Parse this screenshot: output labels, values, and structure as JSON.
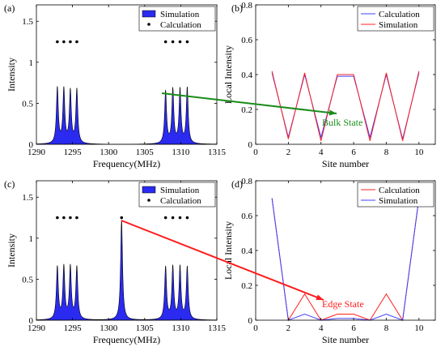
{
  "chart_data": [
    {
      "panel": "(a)",
      "type": "area",
      "xlabel": "Frequency(MHz)",
      "ylabel": "Intensity",
      "xlim": [
        1290,
        1315
      ],
      "ylim": [
        0,
        1.7
      ],
      "xticks": [
        1290,
        1295,
        1300,
        1305,
        1310,
        1315
      ],
      "yticks": [
        0,
        0.5,
        1,
        1.5
      ],
      "ytick_labels": [
        "0",
        "0.5",
        "1",
        "1.5"
      ],
      "legend": [
        "Simulation",
        "Calculation"
      ],
      "legend_position": "top-right",
      "series": [
        {
          "name": "Simulation",
          "kind": "peaks",
          "peaks": [
            {
              "x": 1292.9,
              "y": 0.68
            },
            {
              "x": 1293.8,
              "y": 0.66
            },
            {
              "x": 1294.7,
              "y": 0.64
            },
            {
              "x": 1295.6,
              "y": 0.66
            },
            {
              "x": 1307.9,
              "y": 0.64
            },
            {
              "x": 1308.9,
              "y": 0.66
            },
            {
              "x": 1309.9,
              "y": 0.66
            },
            {
              "x": 1310.9,
              "y": 0.68
            }
          ],
          "baseline_center": 1301.5
        },
        {
          "name": "Calculation",
          "kind": "dots",
          "x": [
            1292.9,
            1293.8,
            1294.7,
            1295.6,
            1307.9,
            1308.9,
            1309.9,
            1310.9
          ],
          "y": [
            1.25,
            1.25,
            1.25,
            1.25,
            1.25,
            1.25,
            1.25,
            1.25
          ]
        }
      ]
    },
    {
      "panel": "(b)",
      "type": "line",
      "xlabel": "Site number",
      "ylabel": "Local Intensity",
      "xlim": [
        0,
        11
      ],
      "ylim": [
        0,
        0.8
      ],
      "xticks": [
        0,
        2,
        4,
        6,
        8,
        10
      ],
      "yticks": [
        0,
        0.2,
        0.4,
        0.6,
        0.8
      ],
      "ytick_labels": [
        "0",
        "0.2",
        "0.4",
        "0.6",
        "0.8"
      ],
      "legend": [
        "Calculation",
        "Simulation"
      ],
      "legend_position": "top-right",
      "x": [
        1,
        2,
        3,
        4,
        5,
        6,
        7,
        8,
        9,
        10
      ],
      "series": [
        {
          "name": "Calculation",
          "color": "#4040ff",
          "values": [
            0.41,
            0.04,
            0.4,
            0.04,
            0.39,
            0.39,
            0.04,
            0.4,
            0.03,
            0.41
          ]
        },
        {
          "name": "Simulation",
          "color": "#ff2020",
          "values": [
            0.42,
            0.03,
            0.41,
            0.02,
            0.4,
            0.4,
            0.02,
            0.41,
            0.02,
            0.42
          ]
        }
      ]
    },
    {
      "panel": "(c)",
      "type": "area",
      "xlabel": "Frequency(MHz)",
      "ylabel": "Intensity",
      "xlim": [
        1290,
        1315
      ],
      "ylim": [
        0,
        1.7
      ],
      "xticks": [
        1290,
        1295,
        1300,
        1305,
        1310,
        1315
      ],
      "yticks": [
        0,
        0.5,
        1,
        1.5
      ],
      "ytick_labels": [
        "0",
        "0.5",
        "1",
        "1.5"
      ],
      "legend": [
        "Simulation",
        "Calculation"
      ],
      "legend_position": "top-right",
      "series": [
        {
          "name": "Simulation",
          "kind": "peaks",
          "peaks": [
            {
              "x": 1292.9,
              "y": 0.64
            },
            {
              "x": 1293.8,
              "y": 0.64
            },
            {
              "x": 1294.7,
              "y": 0.64
            },
            {
              "x": 1295.6,
              "y": 0.64
            },
            {
              "x": 1301.8,
              "y": 1.22
            },
            {
              "x": 1307.9,
              "y": 0.64
            },
            {
              "x": 1308.9,
              "y": 0.64
            },
            {
              "x": 1309.9,
              "y": 0.64
            },
            {
              "x": 1310.9,
              "y": 0.64
            }
          ],
          "baseline_center": null
        },
        {
          "name": "Calculation",
          "kind": "dots",
          "x": [
            1292.9,
            1293.8,
            1294.7,
            1295.6,
            1301.8,
            1307.9,
            1308.9,
            1309.9,
            1310.9
          ],
          "y": [
            1.25,
            1.25,
            1.25,
            1.25,
            1.25,
            1.25,
            1.25,
            1.25,
            1.25
          ]
        }
      ]
    },
    {
      "panel": "(d)",
      "type": "line",
      "xlabel": "Site number",
      "ylabel": "Local Intensity",
      "xlim": [
        0,
        11
      ],
      "ylim": [
        0,
        0.8
      ],
      "xticks": [
        0,
        2,
        4,
        6,
        8,
        10
      ],
      "yticks": [
        0,
        0.2,
        0.4,
        0.6,
        0.8
      ],
      "ytick_labels": [
        "0",
        "0.2",
        "0.4",
        "0.6",
        "0.8"
      ],
      "legend": [
        "Calculation",
        "Simulation"
      ],
      "legend_position": "top-right",
      "x": [
        1,
        2,
        3,
        4,
        5,
        6,
        7,
        8,
        9,
        10
      ],
      "series": [
        {
          "name": "Calculation",
          "color": "#ff2020",
          "values": [
            0.7,
            0.0,
            0.15,
            0.0,
            0.035,
            0.035,
            0.0,
            0.15,
            0.0,
            0.7
          ]
        },
        {
          "name": "Simulation",
          "color": "#4040ff",
          "values": [
            0.7,
            0.0,
            0.035,
            0.0,
            0.01,
            0.01,
            0.0,
            0.035,
            0.0,
            0.7
          ]
        }
      ]
    }
  ],
  "annotations": {
    "bulk": {
      "text": "Bulk State",
      "color": "#1a8c1a"
    },
    "edge": {
      "text": "Edge State",
      "color": "#ff1a1a"
    }
  },
  "colors": {
    "fill": "#2a2af0",
    "axis": "#000000"
  }
}
